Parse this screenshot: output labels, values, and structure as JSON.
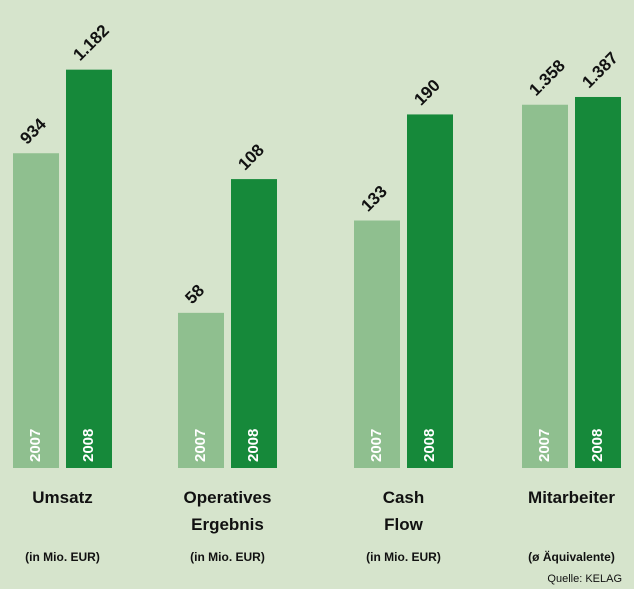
{
  "chart_data": [
    {
      "type": "bar",
      "title": "Umsatz",
      "subtitle": "(in Mio. EUR)",
      "ylim": [
        0,
        1270
      ],
      "series": [
        {
          "name": "2007",
          "color": "#8fbf8f",
          "values": [
            934
          ]
        },
        {
          "name": "2008",
          "color": "#16893a",
          "values": [
            1182
          ],
          "value_labels": [
            "1.182"
          ]
        }
      ]
    },
    {
      "type": "bar",
      "title": "Operatives Ergebnis",
      "subtitle": "(in Mio. EUR)",
      "ylim": [
        0,
        160
      ],
      "series": [
        {
          "name": "2007",
          "color": "#8fbf8f",
          "values": [
            58
          ]
        },
        {
          "name": "2008",
          "color": "#16893a",
          "values": [
            108
          ]
        }
      ]
    },
    {
      "type": "bar",
      "title": "Cash Flow",
      "subtitle": "(in Mio. EUR)",
      "ylim": [
        0,
        230
      ],
      "series": [
        {
          "name": "2007",
          "color": "#8fbf8f",
          "values": [
            133
          ]
        },
        {
          "name": "2008",
          "color": "#16893a",
          "values": [
            190
          ]
        }
      ]
    },
    {
      "type": "bar",
      "title": "Mitarbeiter",
      "subtitle": "(ø Äquivalente)",
      "ylim": [
        0,
        1600
      ],
      "series": [
        {
          "name": "2007",
          "color": "#8fbf8f",
          "values": [
            1358
          ],
          "value_labels": [
            "1.358"
          ]
        },
        {
          "name": "2008",
          "color": "#16893a",
          "values": [
            1387
          ],
          "value_labels": [
            "1.387"
          ]
        }
      ]
    }
  ],
  "source": "Quelle: KELAG"
}
